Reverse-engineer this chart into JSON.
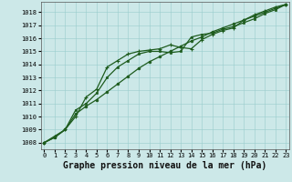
{
  "title": "Graphe pression niveau de la mer (hPa)",
  "hours": [
    0,
    1,
    2,
    3,
    4,
    5,
    6,
    7,
    8,
    9,
    10,
    11,
    12,
    13,
    14,
    15,
    16,
    17,
    18,
    19,
    20,
    21,
    22,
    23
  ],
  "ylim": [
    1007.5,
    1018.8
  ],
  "xlim": [
    -0.3,
    23.3
  ],
  "yticks": [
    1008,
    1009,
    1010,
    1011,
    1012,
    1013,
    1014,
    1015,
    1016,
    1017,
    1018
  ],
  "bg_color": "#cce8e8",
  "grid_color": "#99cccc",
  "line_color": "#1e5c1e",
  "line1_y": [
    1008.0,
    1008.5,
    1009.0,
    1010.0,
    1011.5,
    1012.1,
    1013.8,
    1014.3,
    1014.8,
    1015.0,
    1015.1,
    1015.2,
    1015.5,
    1015.3,
    1015.2,
    1015.9,
    1016.3,
    1016.6,
    1016.8,
    1017.4,
    1017.8,
    1018.1,
    1018.4,
    1018.6
  ],
  "line2_y": [
    1008.0,
    1008.4,
    1009.0,
    1010.2,
    1010.8,
    1011.3,
    1011.9,
    1012.5,
    1013.1,
    1013.7,
    1014.2,
    1014.6,
    1015.0,
    1015.4,
    1015.8,
    1016.1,
    1016.5,
    1016.8,
    1017.1,
    1017.4,
    1017.7,
    1018.0,
    1018.3,
    1018.6
  ],
  "line3_y": [
    1008.0,
    1008.4,
    1009.0,
    1010.5,
    1011.0,
    1011.8,
    1013.0,
    1013.8,
    1014.3,
    1014.8,
    1015.0,
    1015.0,
    1014.9,
    1015.0,
    1016.1,
    1016.3,
    1016.4,
    1016.7,
    1016.9,
    1017.2,
    1017.5,
    1017.9,
    1018.2,
    1018.6
  ],
  "linewidth": 0.9,
  "tick_fontsize": 5,
  "title_fontsize": 7,
  "marker_size_plus": 3.5,
  "marker_size_dot": 2.0,
  "marker_size_sq": 2.0
}
